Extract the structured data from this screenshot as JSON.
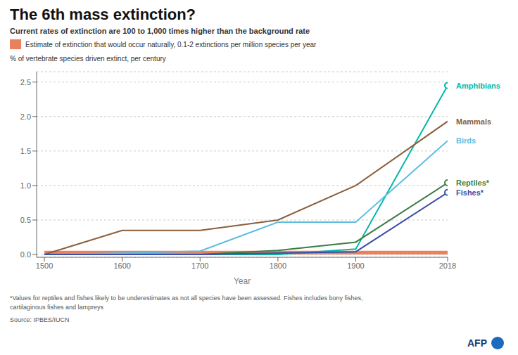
{
  "chart_data": {
    "type": "line",
    "title": "The 6th mass extinction?",
    "subtitle": "Current rates of extinction are 100 to 1,000 times higher than the background rate",
    "y_label": "% of vertebrate species driven extinct, per century",
    "x_label": "Year",
    "footnote": "*Values for reptiles and fishes likely to be underestimates as not all species have been assessed. Fishes includes bony fishes,\ncartilaginous fishes and lampreys",
    "source": "Source: IPBES/IUCN",
    "annotations": [
      "AFP"
    ],
    "x": [
      1500,
      1600,
      1700,
      1800,
      1900,
      2018
    ],
    "series": [
      {
        "name": "Amphibians",
        "color": "#00b8a9",
        "values": [
          0.0,
          0.0,
          0.0,
          0.0,
          0.08,
          2.45
        ],
        "marker": "end_circle"
      },
      {
        "name": "Mammals",
        "color": "#8B5E3C",
        "values": [
          0.0,
          0.35,
          0.35,
          0.5,
          1.0,
          1.93
        ]
      },
      {
        "name": "Birds",
        "color": "#5bbde0",
        "values": [
          0.0,
          0.02,
          0.05,
          0.47,
          0.47,
          1.65
        ]
      },
      {
        "name": "Reptiles*",
        "color": "#3a7d44",
        "values": [
          0.0,
          0.0,
          0.0,
          0.06,
          0.18,
          1.04
        ],
        "marker": "end_circle"
      },
      {
        "name": "Fishes*",
        "color": "#3a4fa8",
        "values": [
          0.0,
          0.0,
          0.0,
          0.02,
          0.04,
          0.9
        ],
        "marker": "end_circle"
      }
    ],
    "band": {
      "name": "Estimate of extinction that would occur naturally, 0.1-2 extinctions per million species per year",
      "color": "#e8724a",
      "x": [
        1500,
        2018
      ],
      "low": 0.0,
      "high": 0.055
    },
    "xlim": [
      1490,
      2018
    ],
    "xticks": [
      1500,
      1600,
      1700,
      1800,
      1900,
      2018
    ],
    "ylim": [
      -0.04,
      2.65
    ],
    "yticks": [
      {
        "value": 0,
        "label": "0.0"
      },
      0.5,
      {
        "value": 1,
        "label": "1.0"
      },
      1.5,
      {
        "value": 2,
        "label": "2.0"
      },
      2.5
    ],
    "grid": true
  }
}
